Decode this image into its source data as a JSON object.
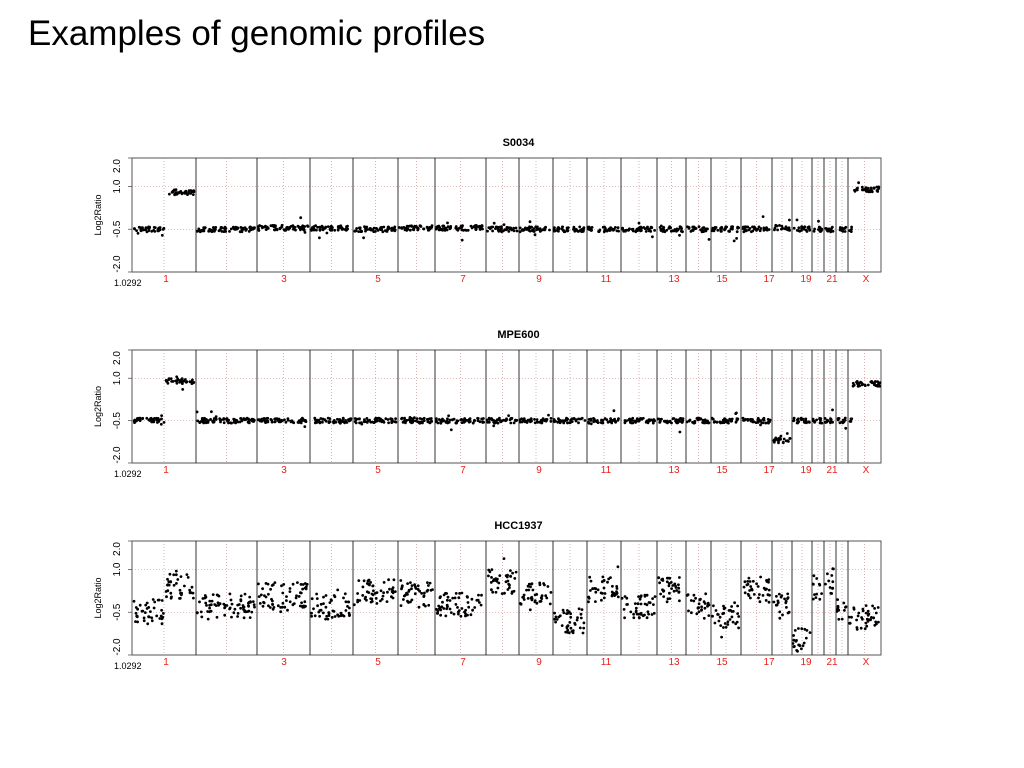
{
  "slide_title": "Examples of genomic profiles",
  "chart_data": [
    {
      "type": "scatter",
      "title": "S0034",
      "ylabel": "Log2Ratio",
      "ylim": [
        -2.0,
        2.0
      ],
      "yticks": [
        "2.0",
        "1.0",
        "-0.5",
        "-2.0"
      ],
      "x_origin_label": "1.0292",
      "chromosome_labels": [
        "1",
        "3",
        "5",
        "7",
        "9",
        "11",
        "13",
        "15",
        "17",
        "19",
        "21",
        "X"
      ],
      "chromosomes": [
        "1",
        "2",
        "3",
        "4",
        "5",
        "6",
        "7",
        "8",
        "9",
        "10",
        "11",
        "12",
        "13",
        "14",
        "15",
        "16",
        "17",
        "18",
        "19",
        "20",
        "21",
        "22",
        "X"
      ],
      "segments": [
        {
          "chrom": "1",
          "level": -0.5
        },
        {
          "chrom": "1b",
          "level": 0.8
        },
        {
          "chrom": "2",
          "level": -0.5
        },
        {
          "chrom": "3",
          "level": -0.45
        },
        {
          "chrom": "4",
          "level": -0.45
        },
        {
          "chrom": "5",
          "level": -0.5
        },
        {
          "chrom": "6",
          "level": -0.45
        },
        {
          "chrom": "7",
          "level": -0.45
        },
        {
          "chrom": "8",
          "level": -0.5
        },
        {
          "chrom": "9",
          "level": -0.5
        },
        {
          "chrom": "10",
          "level": -0.5
        },
        {
          "chrom": "11",
          "level": -0.5
        },
        {
          "chrom": "12",
          "level": -0.5
        },
        {
          "chrom": "13",
          "level": -0.5
        },
        {
          "chrom": "14",
          "level": -0.5
        },
        {
          "chrom": "15",
          "level": -0.5
        },
        {
          "chrom": "16",
          "level": -0.5
        },
        {
          "chrom": "17",
          "level": -0.45
        },
        {
          "chrom": "18",
          "level": -0.5
        },
        {
          "chrom": "19",
          "level": -0.5
        },
        {
          "chrom": "20",
          "level": -0.5
        },
        {
          "chrom": "21",
          "level": -0.5
        },
        {
          "chrom": "22",
          "level": -0.5
        },
        {
          "chrom": "X",
          "level": 0.9
        }
      ]
    },
    {
      "type": "scatter",
      "title": "MPE600",
      "ylabel": "Log2Ratio",
      "ylim": [
        -2.0,
        2.0
      ],
      "yticks": [
        "2.0",
        "1.0",
        "-0.5",
        "-2.0"
      ],
      "x_origin_label": "1.0292",
      "chromosome_labels": [
        "1",
        "3",
        "5",
        "7",
        "9",
        "11",
        "13",
        "15",
        "17",
        "19",
        "21",
        "X"
      ],
      "chromosomes": [
        "1",
        "2",
        "3",
        "4",
        "5",
        "6",
        "7",
        "8",
        "9",
        "10",
        "11",
        "12",
        "13",
        "14",
        "15",
        "16",
        "17",
        "18",
        "19",
        "20",
        "21",
        "22",
        "X"
      ],
      "segments": [
        {
          "chrom": "1",
          "level": -0.5
        },
        {
          "chrom": "1b",
          "level": 0.9
        },
        {
          "chrom": "2",
          "level": -0.5
        },
        {
          "chrom": "3",
          "level": -0.5
        },
        {
          "chrom": "4",
          "level": -0.5
        },
        {
          "chrom": "5",
          "level": -0.5
        },
        {
          "chrom": "6",
          "level": -0.5
        },
        {
          "chrom": "7",
          "level": -0.5
        },
        {
          "chrom": "8",
          "level": -0.5
        },
        {
          "chrom": "9",
          "level": -0.5
        },
        {
          "chrom": "10",
          "level": -0.5
        },
        {
          "chrom": "11",
          "level": -0.5
        },
        {
          "chrom": "12",
          "level": -0.5
        },
        {
          "chrom": "13",
          "level": -0.5
        },
        {
          "chrom": "14",
          "level": -0.5
        },
        {
          "chrom": "15",
          "level": -0.5
        },
        {
          "chrom": "16",
          "level": -0.5
        },
        {
          "chrom": "17",
          "level": -1.2
        },
        {
          "chrom": "18",
          "level": -0.5
        },
        {
          "chrom": "19",
          "level": -0.5
        },
        {
          "chrom": "20",
          "level": -0.5
        },
        {
          "chrom": "21",
          "level": -0.5
        },
        {
          "chrom": "22",
          "level": -0.5
        },
        {
          "chrom": "X",
          "level": 0.8
        }
      ]
    },
    {
      "type": "scatter",
      "title": "HCC1937",
      "ylabel": "Log2Ratio",
      "ylim": [
        -2.0,
        2.0
      ],
      "yticks": [
        "2.0",
        "1.0",
        "-0.5",
        "-2.0"
      ],
      "x_origin_label": "1.0292",
      "chromosome_labels": [
        "1",
        "3",
        "5",
        "7",
        "9",
        "11",
        "13",
        "15",
        "17",
        "19",
        "21",
        "X"
      ],
      "chromosomes": [
        "1",
        "2",
        "3",
        "4",
        "5",
        "6",
        "7",
        "8",
        "9",
        "10",
        "11",
        "12",
        "13",
        "14",
        "15",
        "16",
        "17",
        "18",
        "19",
        "20",
        "21",
        "22",
        "X"
      ],
      "segments": [
        {
          "chrom": "1",
          "level": -0.5
        },
        {
          "chrom": "1b",
          "level": 0.4
        },
        {
          "chrom": "2",
          "level": -0.3
        },
        {
          "chrom": "3",
          "level": 0.1
        },
        {
          "chrom": "4",
          "level": -0.3
        },
        {
          "chrom": "5",
          "level": 0.2
        },
        {
          "chrom": "6",
          "level": 0.1
        },
        {
          "chrom": "7",
          "level": -0.2
        },
        {
          "chrom": "8",
          "level": 0.6
        },
        {
          "chrom": "9",
          "level": 0.2
        },
        {
          "chrom": "10",
          "level": -0.8
        },
        {
          "chrom": "11",
          "level": 0.3
        },
        {
          "chrom": "12",
          "level": -0.3
        },
        {
          "chrom": "13",
          "level": 0.3
        },
        {
          "chrom": "14",
          "level": -0.3
        },
        {
          "chrom": "15",
          "level": -0.6
        },
        {
          "chrom": "16",
          "level": 0.3
        },
        {
          "chrom": "17",
          "level": -0.3
        },
        {
          "chrom": "18",
          "level": -1.5
        },
        {
          "chrom": "19",
          "level": 0.4
        },
        {
          "chrom": "20",
          "level": 0.6
        },
        {
          "chrom": "21",
          "level": -0.4
        },
        {
          "chrom": "22",
          "level": -0.6
        },
        {
          "chrom": "X",
          "level": -0.7
        }
      ]
    }
  ],
  "colors": {
    "points": "#000000",
    "chromosome_labels": "#e8201a",
    "boundaries": "#000000",
    "grid": "#c08080"
  }
}
